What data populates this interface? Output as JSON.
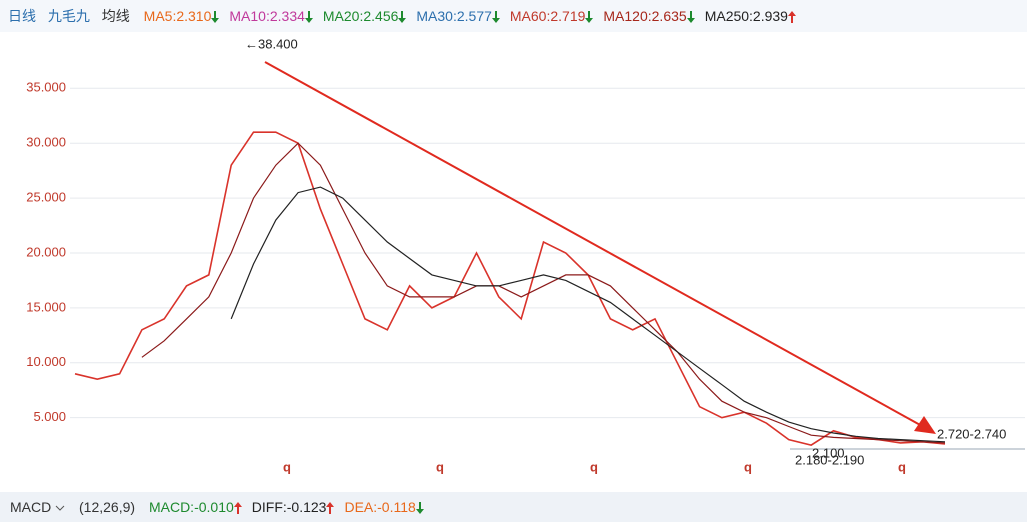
{
  "header": {
    "period": "日线",
    "stock": "九毛九",
    "ma_title": "均线",
    "ma_labels": [
      {
        "text": "MA5:2.310",
        "color": "#e8681a",
        "arrow": "down"
      },
      {
        "text": "MA10:2.334",
        "color": "#c0399b",
        "arrow": "down"
      },
      {
        "text": "MA20:2.456",
        "color": "#1d8a2e",
        "arrow": "down"
      },
      {
        "text": "MA30:2.577",
        "color": "#2c6fad",
        "arrow": "down"
      },
      {
        "text": "MA60:2.719",
        "color": "#c0392b",
        "arrow": "down"
      },
      {
        "text": "MA120:2.635",
        "color": "#a6271b",
        "arrow": "down"
      },
      {
        "text": "MA250:2.939",
        "color": "#222222",
        "arrow": "up"
      }
    ]
  },
  "chart_data": {
    "type": "line",
    "categories": [
      null,
      null,
      null,
      null,
      null,
      null,
      null,
      null,
      null,
      null,
      null,
      null,
      null,
      null,
      null,
      null,
      null,
      null,
      null,
      null,
      null,
      null,
      null,
      null,
      null,
      null,
      null,
      null,
      null,
      null,
      null,
      null,
      null,
      null,
      null,
      null,
      null,
      null,
      null,
      null
    ],
    "series": [
      {
        "name": "close",
        "color": "#d9332b",
        "values": [
          9,
          8.5,
          9,
          13,
          14,
          17,
          18,
          28,
          31,
          31,
          30,
          24,
          19,
          14,
          13,
          17,
          15,
          16,
          20,
          16,
          14,
          21,
          20,
          18,
          14,
          13,
          14,
          10,
          6,
          5,
          5.5,
          4.5,
          3,
          2.5,
          3.8,
          3.2,
          3.0,
          2.7,
          2.8,
          2.6
        ]
      },
      {
        "name": "MA60",
        "color": "#8b1a1a",
        "values": [
          null,
          null,
          null,
          10.5,
          12,
          14,
          16,
          20,
          25,
          28,
          30,
          28,
          24,
          20,
          17,
          16,
          16,
          16,
          17,
          17,
          16,
          17,
          18,
          18,
          17,
          15,
          13,
          11,
          8.5,
          6.5,
          5.5,
          5,
          4.2,
          3.4,
          3.2,
          3.1,
          3.0,
          2.9,
          2.8,
          2.7
        ]
      },
      {
        "name": "MA250",
        "color": "#222222",
        "values": [
          null,
          null,
          null,
          null,
          null,
          null,
          null,
          14,
          19,
          23,
          25.5,
          26,
          25,
          23,
          21,
          19.5,
          18,
          17.5,
          17,
          17,
          17.5,
          18,
          17.5,
          16.5,
          15.5,
          14,
          12.5,
          11,
          9.5,
          8,
          6.5,
          5.5,
          4.6,
          4,
          3.6,
          3.3,
          3.1,
          3.0,
          2.9,
          2.8
        ]
      }
    ],
    "ylim": [
      1.6,
      39.4
    ],
    "yticks": [
      {
        "value": 5,
        "label": "5.000"
      },
      {
        "value": 10,
        "label": "10.000"
      },
      {
        "value": 15,
        "label": "15.000"
      },
      {
        "value": 20,
        "label": "20.000"
      },
      {
        "value": 25,
        "label": "25.000"
      },
      {
        "value": 30,
        "label": "30.000"
      },
      {
        "value": 35,
        "label": "35.000"
      }
    ],
    "grid": true,
    "annotations": [
      "←38.400",
      "2.720-2.740",
      "2.100",
      "2.180-2.190",
      "q",
      "q",
      "q",
      "q",
      "q"
    ]
  },
  "footer": {
    "indicator": "MACD",
    "params": "(12,26,9)",
    "values": [
      {
        "text": "MACD:-0.010",
        "color": "#1d8a2e",
        "arrow": "up"
      },
      {
        "text": "DIFF:-0.123",
        "color": "#222222",
        "arrow": "up"
      },
      {
        "text": "DEA:-0.118",
        "color": "#e8681a",
        "arrow": "down"
      }
    ]
  }
}
